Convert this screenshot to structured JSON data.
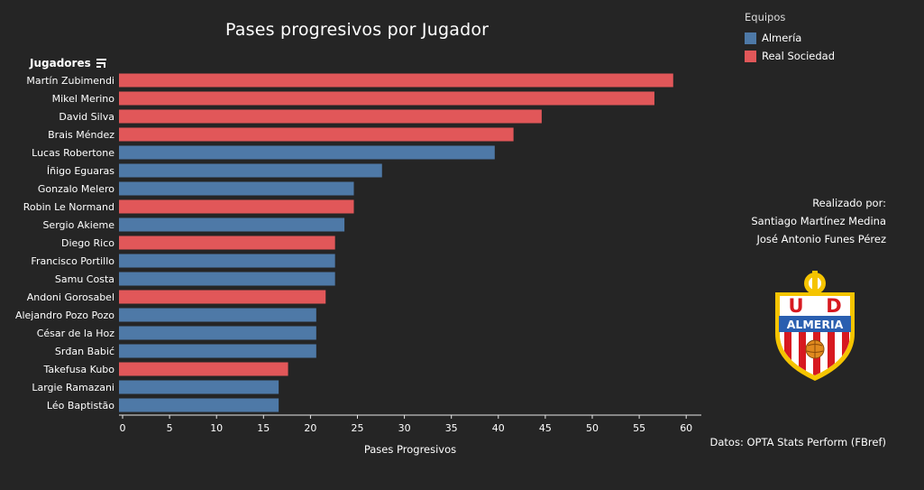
{
  "chart_data": {
    "type": "bar",
    "orientation": "horizontal",
    "title": "Pases progresivos por Jugador",
    "xlabel": "Pases Progresivos",
    "ylabel": "Jugadores",
    "xlim": [
      0,
      62
    ],
    "xticks": [
      0,
      5,
      10,
      15,
      20,
      25,
      30,
      35,
      40,
      45,
      50,
      55,
      60
    ],
    "grid": false,
    "legend": {
      "title": "Equipos",
      "placement": "top-right",
      "entries": [
        {
          "name": "Almería",
          "color": "#4e79a7"
        },
        {
          "name": "Real Sociedad",
          "color": "#e15759"
        }
      ]
    },
    "bars": [
      {
        "label": "Martín Zubimendi",
        "value": 59,
        "team": "Real Sociedad"
      },
      {
        "label": "Mikel Merino",
        "value": 57,
        "team": "Real Sociedad"
      },
      {
        "label": "David Silva",
        "value": 45,
        "team": "Real Sociedad"
      },
      {
        "label": "Brais Méndez",
        "value": 42,
        "team": "Real Sociedad"
      },
      {
        "label": "Lucas Robertone",
        "value": 40,
        "team": "Almería"
      },
      {
        "label": "Íñigo Eguaras",
        "value": 28,
        "team": "Almería"
      },
      {
        "label": "Gonzalo Melero",
        "value": 25,
        "team": "Almería"
      },
      {
        "label": "Robin Le Normand",
        "value": 25,
        "team": "Real Sociedad"
      },
      {
        "label": "Sergio Akieme",
        "value": 24,
        "team": "Almería"
      },
      {
        "label": "Diego Rico",
        "value": 23,
        "team": "Real Sociedad"
      },
      {
        "label": "Francisco Portillo",
        "value": 23,
        "team": "Almería"
      },
      {
        "label": "Samu Costa",
        "value": 23,
        "team": "Almería"
      },
      {
        "label": "Andoni Gorosabel",
        "value": 22,
        "team": "Real Sociedad"
      },
      {
        "label": "Alejandro Pozo Pozo",
        "value": 21,
        "team": "Almería"
      },
      {
        "label": "César de la Hoz",
        "value": 21,
        "team": "Almería"
      },
      {
        "label": "Srđan Babić",
        "value": 21,
        "team": "Almería"
      },
      {
        "label": "Takefusa Kubo",
        "value": 18,
        "team": "Real Sociedad"
      },
      {
        "label": "Largie Ramazani",
        "value": 17,
        "team": "Almería"
      },
      {
        "label": "Léo Baptistão",
        "value": 17,
        "team": "Almería"
      }
    ]
  },
  "credits": {
    "heading": "Realizado por:",
    "author_1": "Santiago Martínez Medina",
    "author_2": "José Antonio Funes Pérez"
  },
  "crest": {
    "icon": "ud-almeria-crest-icon",
    "letter_u": "U",
    "letter_d": "D",
    "name": "ALMERIA"
  },
  "source": "Datos: OPTA Stats Perform (FBref)",
  "colors": {
    "background": "#252525",
    "almeria": "#4e79a7",
    "real_sociedad": "#e15759"
  }
}
